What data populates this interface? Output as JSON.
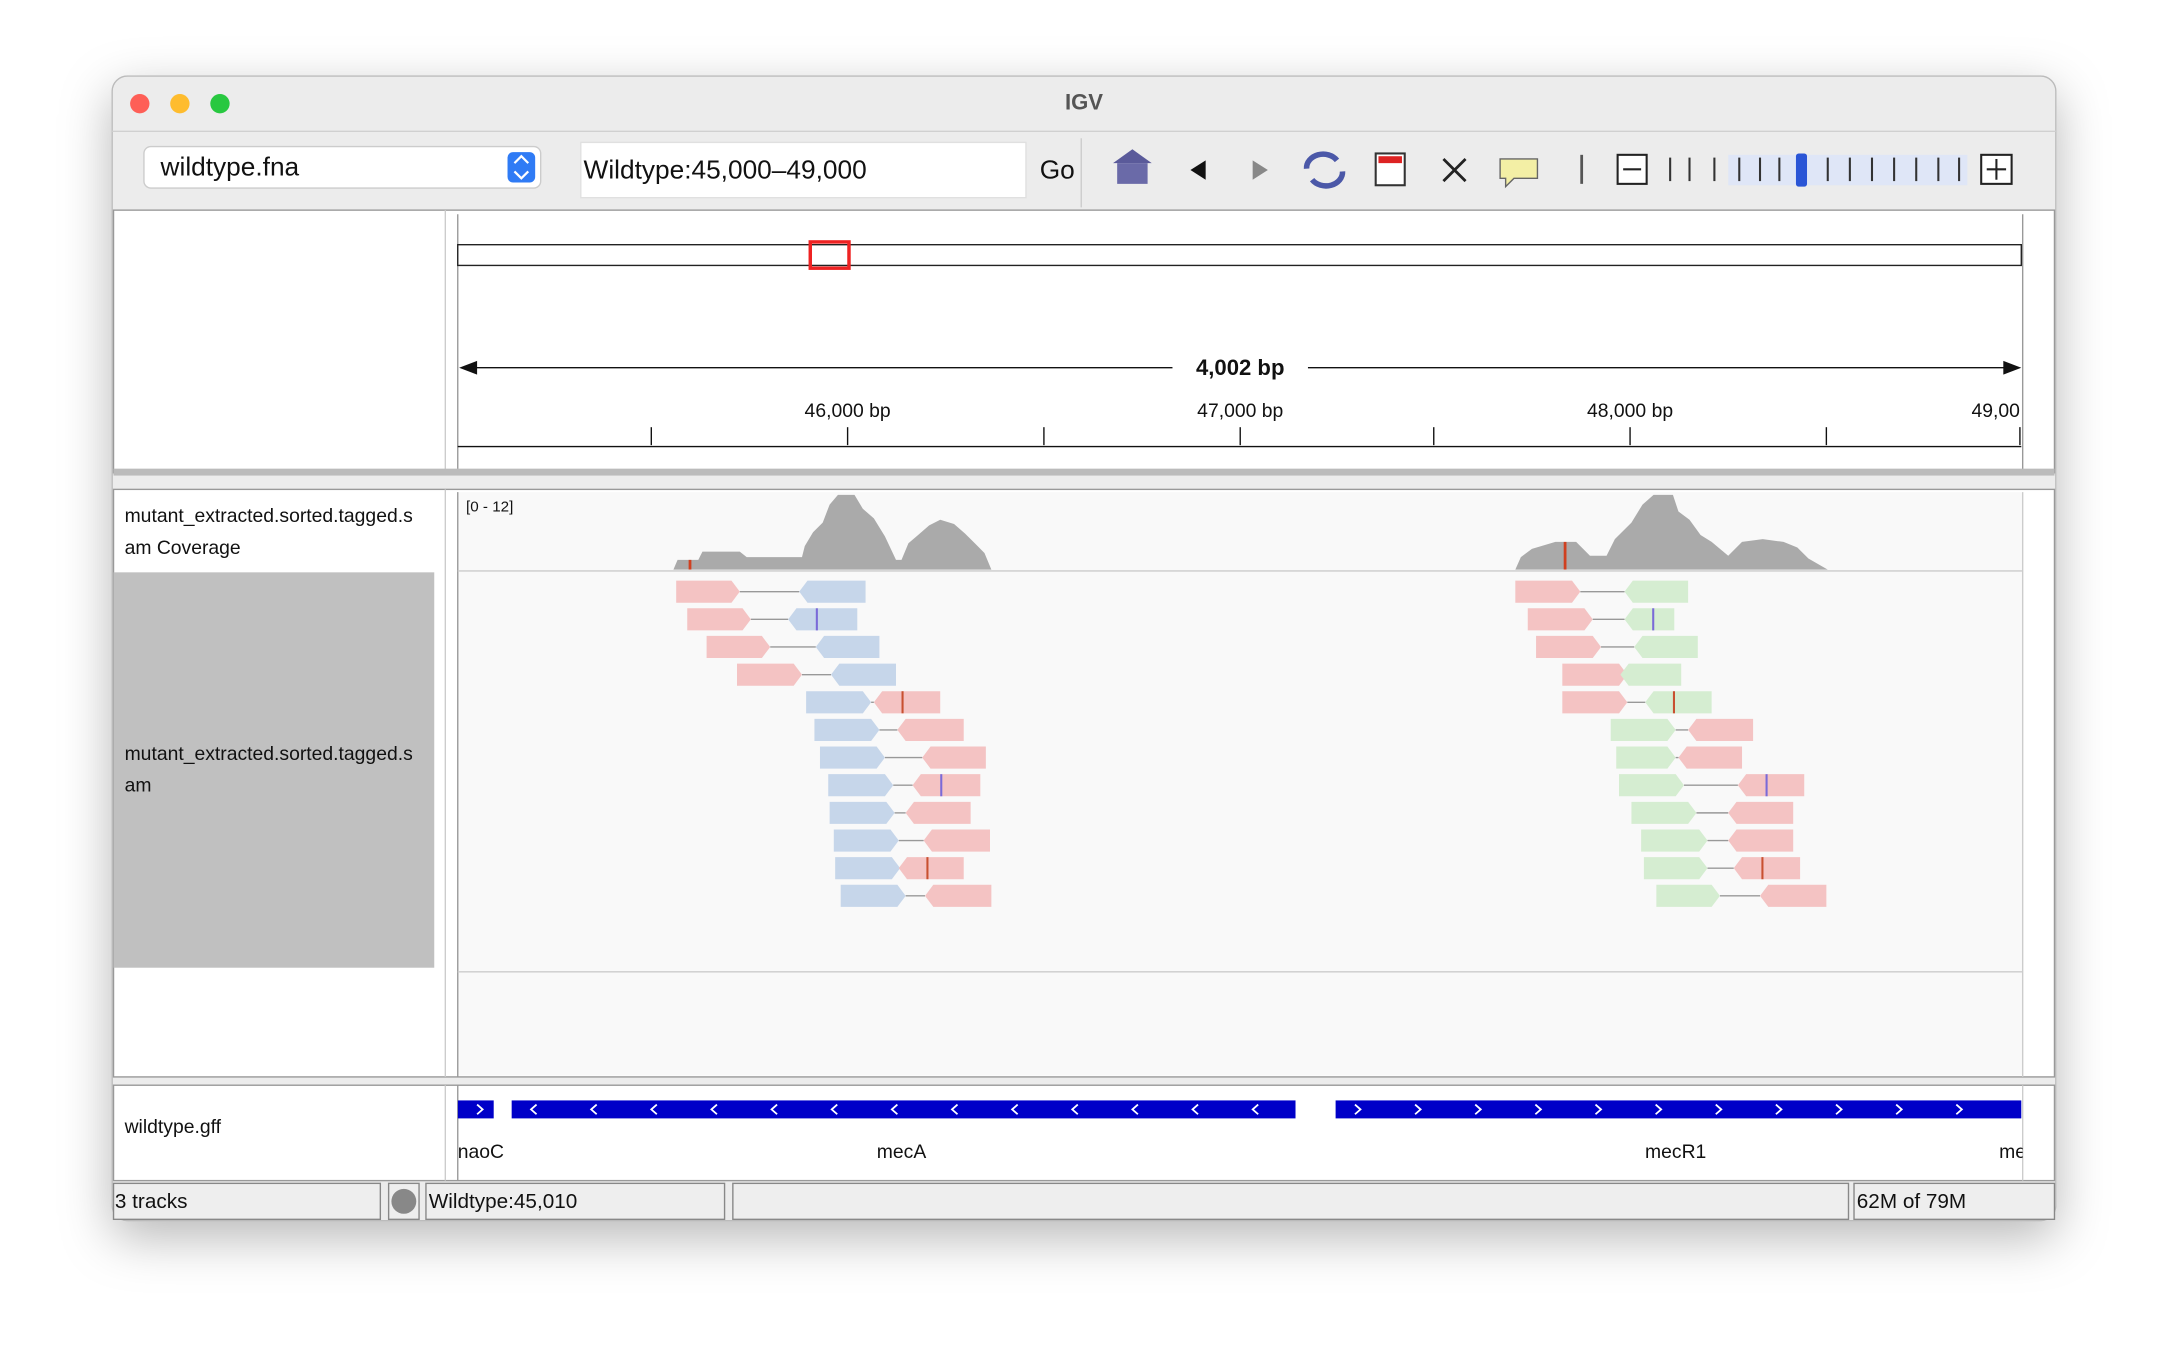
{
  "window": {
    "title": "IGV"
  },
  "toolbar": {
    "genome": "wildtype.fna",
    "locus": "Wildtype:45,000–49,000",
    "go": "Go"
  },
  "ruler": {
    "span": "4,002 bp",
    "ticks": [
      "46,000 bp",
      "47,000 bp",
      "48,000 bp",
      "49,00"
    ]
  },
  "tracks": [
    {
      "name_lines": [
        "mutant_extracted.sorted.tagged.s",
        "am Coverage"
      ],
      "range": "[0 - 12]"
    },
    {
      "name_lines": [
        "mutant_extracted.sorted.tagged.s",
        "am"
      ]
    },
    {
      "name_lines": [
        "wildtype.gff"
      ],
      "features": [
        "naoC",
        "mecA",
        "mecR1",
        "me"
      ]
    }
  ],
  "status": {
    "tracks": "3 tracks",
    "position": "Wildtype:45,010",
    "memory": "62M of 79M"
  }
}
